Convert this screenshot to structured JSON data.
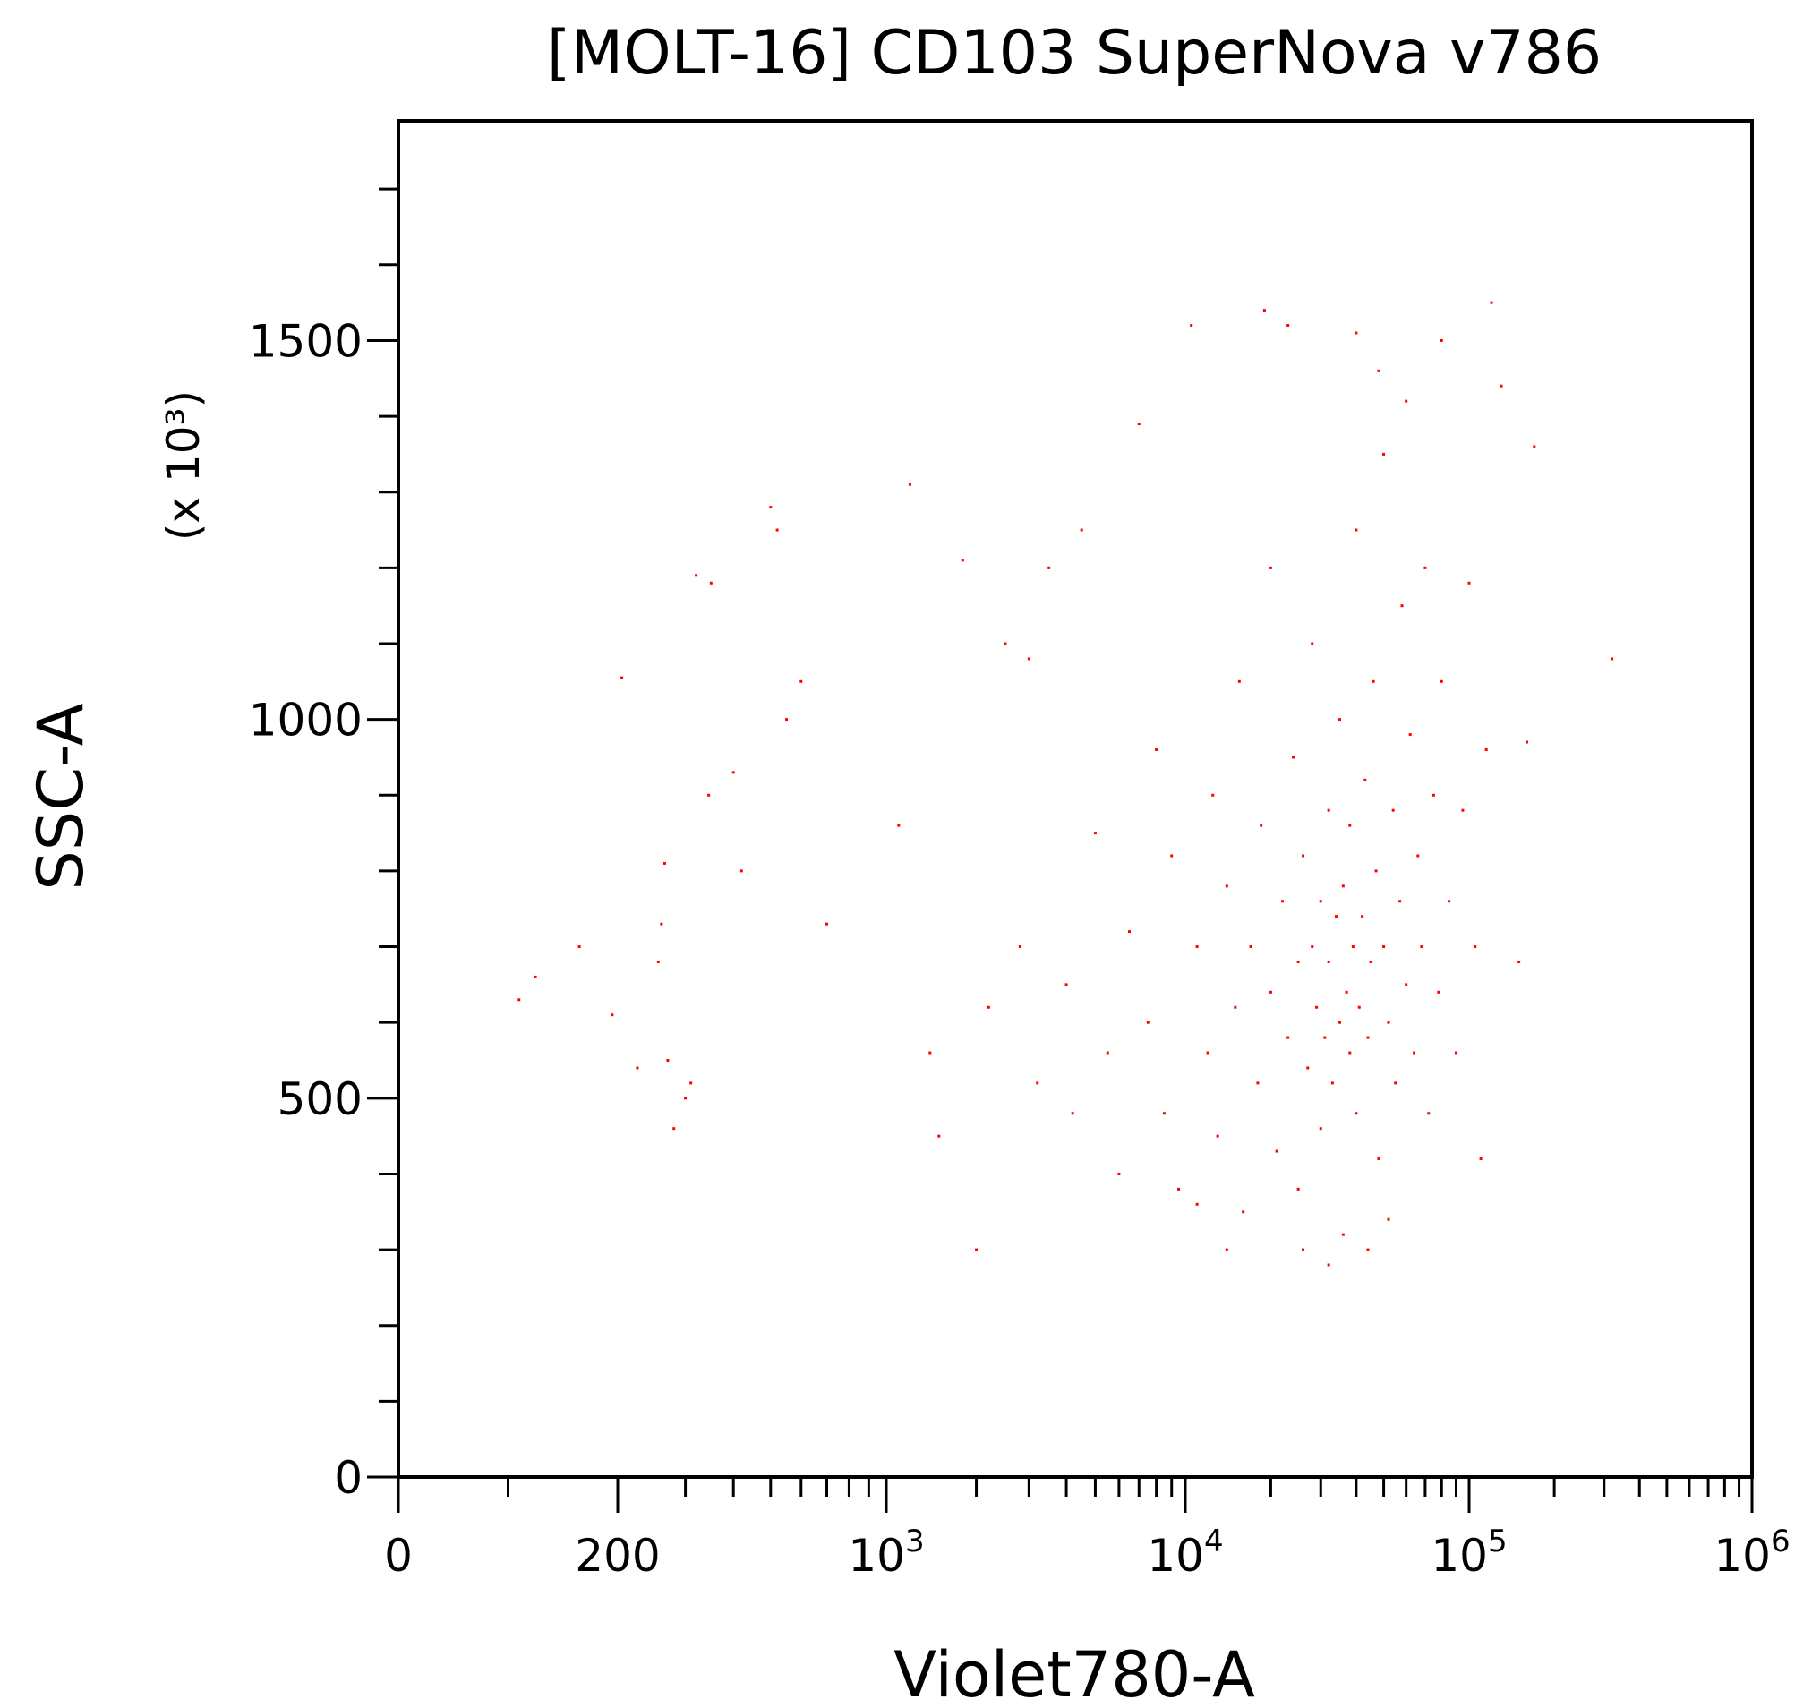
{
  "chart_data": {
    "type": "scatter",
    "title": "[MOLT-16] CD103 SuperNova v786",
    "xlabel": "Violet780-A",
    "ylabel": "SSC-A",
    "y_multiplier_label": "(x 10³)",
    "x_scale": "logicle",
    "xlim": [
      0,
      1000000
    ],
    "ylim": [
      0,
      1790
    ],
    "x_ticks": [
      {
        "value": 0,
        "label": "0"
      },
      {
        "value": 200,
        "label": "200"
      },
      {
        "value": 1000,
        "label": "10",
        "exp": "3"
      },
      {
        "value": 10000,
        "label": "10",
        "exp": "4"
      },
      {
        "value": 100000,
        "label": "10",
        "exp": "5"
      },
      {
        "value": 1000000,
        "label": "10",
        "exp": "6"
      }
    ],
    "y_ticks": [
      {
        "value": 0,
        "label": "0"
      },
      {
        "value": 500,
        "label": "500"
      },
      {
        "value": 1000,
        "label": "1000"
      },
      {
        "value": 1500,
        "label": "1500"
      }
    ],
    "grid": false,
    "point_color": "#ff0000",
    "points": [
      [
        110,
        630
      ],
      [
        125,
        660
      ],
      [
        165,
        700
      ],
      [
        205,
        1055
      ],
      [
        195,
        610
      ],
      [
        225,
        540
      ],
      [
        260,
        730
      ],
      [
        255,
        680
      ],
      [
        265,
        810
      ],
      [
        270,
        550
      ],
      [
        280,
        460
      ],
      [
        300,
        500
      ],
      [
        310,
        520
      ],
      [
        320,
        1190
      ],
      [
        350,
        1180
      ],
      [
        345,
        900
      ],
      [
        400,
        930
      ],
      [
        420,
        800
      ],
      [
        500,
        1280
      ],
      [
        520,
        1250
      ],
      [
        550,
        1000
      ],
      [
        600,
        1050
      ],
      [
        700,
        730
      ],
      [
        1100,
        860
      ],
      [
        1200,
        1310
      ],
      [
        1500,
        450
      ],
      [
        1800,
        1210
      ],
      [
        2000,
        300
      ],
      [
        2500,
        1100
      ],
      [
        3000,
        1080
      ],
      [
        3500,
        1200
      ],
      [
        4500,
        1250
      ],
      [
        5000,
        850
      ],
      [
        6000,
        400
      ],
      [
        7000,
        1390
      ],
      [
        8000,
        960
      ],
      [
        10500,
        1520
      ],
      [
        19000,
        1540
      ],
      [
        23000,
        1520
      ],
      [
        40000,
        1510
      ],
      [
        80000,
        1500
      ],
      [
        120000,
        1550
      ],
      [
        170000,
        1360
      ],
      [
        320000,
        1080
      ],
      [
        160000,
        970
      ],
      [
        150000,
        680
      ],
      [
        130000,
        1440
      ],
      [
        1400,
        560
      ],
      [
        2200,
        620
      ],
      [
        2800,
        700
      ],
      [
        3200,
        520
      ],
      [
        4000,
        650
      ],
      [
        4200,
        480
      ],
      [
        5500,
        560
      ],
      [
        6500,
        720
      ],
      [
        7500,
        600
      ],
      [
        8500,
        480
      ],
      [
        9000,
        820
      ],
      [
        9500,
        380
      ],
      [
        11000,
        700
      ],
      [
        12000,
        560
      ],
      [
        12500,
        900
      ],
      [
        13000,
        450
      ],
      [
        14000,
        780
      ],
      [
        15000,
        620
      ],
      [
        15500,
        1050
      ],
      [
        16000,
        350
      ],
      [
        17000,
        700
      ],
      [
        18000,
        520
      ],
      [
        18500,
        860
      ],
      [
        20000,
        640
      ],
      [
        20000,
        1200
      ],
      [
        21000,
        430
      ],
      [
        22000,
        760
      ],
      [
        23000,
        580
      ],
      [
        24000,
        950
      ],
      [
        25000,
        680
      ],
      [
        25000,
        380
      ],
      [
        26000,
        820
      ],
      [
        27000,
        540
      ],
      [
        28000,
        700
      ],
      [
        28000,
        1100
      ],
      [
        29000,
        620
      ],
      [
        30000,
        760
      ],
      [
        30000,
        460
      ],
      [
        31000,
        580
      ],
      [
        32000,
        880
      ],
      [
        32000,
        680
      ],
      [
        33000,
        520
      ],
      [
        34000,
        740
      ],
      [
        35000,
        600
      ],
      [
        35000,
        1000
      ],
      [
        36000,
        780
      ],
      [
        37000,
        640
      ],
      [
        38000,
        560
      ],
      [
        38000,
        860
      ],
      [
        39000,
        700
      ],
      [
        40000,
        480
      ],
      [
        40000,
        1250
      ],
      [
        41000,
        620
      ],
      [
        42000,
        740
      ],
      [
        43000,
        920
      ],
      [
        44000,
        580
      ],
      [
        45000,
        680
      ],
      [
        46000,
        1050
      ],
      [
        47000,
        800
      ],
      [
        48000,
        420
      ],
      [
        50000,
        700
      ],
      [
        50000,
        1350
      ],
      [
        52000,
        600
      ],
      [
        54000,
        880
      ],
      [
        55000,
        520
      ],
      [
        57000,
        760
      ],
      [
        58000,
        1150
      ],
      [
        60000,
        650
      ],
      [
        62000,
        980
      ],
      [
        64000,
        560
      ],
      [
        66000,
        820
      ],
      [
        68000,
        700
      ],
      [
        70000,
        1200
      ],
      [
        72000,
        480
      ],
      [
        75000,
        900
      ],
      [
        78000,
        640
      ],
      [
        80000,
        1050
      ],
      [
        85000,
        760
      ],
      [
        90000,
        560
      ],
      [
        95000,
        880
      ],
      [
        100000,
        1180
      ],
      [
        105000,
        700
      ],
      [
        110000,
        420
      ],
      [
        115000,
        960
      ],
      [
        26000,
        300
      ],
      [
        32000,
        280
      ],
      [
        36000,
        320
      ],
      [
        44000,
        300
      ],
      [
        52000,
        340
      ],
      [
        14000,
        300
      ],
      [
        11000,
        360
      ],
      [
        60000,
        1420
      ],
      [
        48000,
        1460
      ]
    ]
  }
}
